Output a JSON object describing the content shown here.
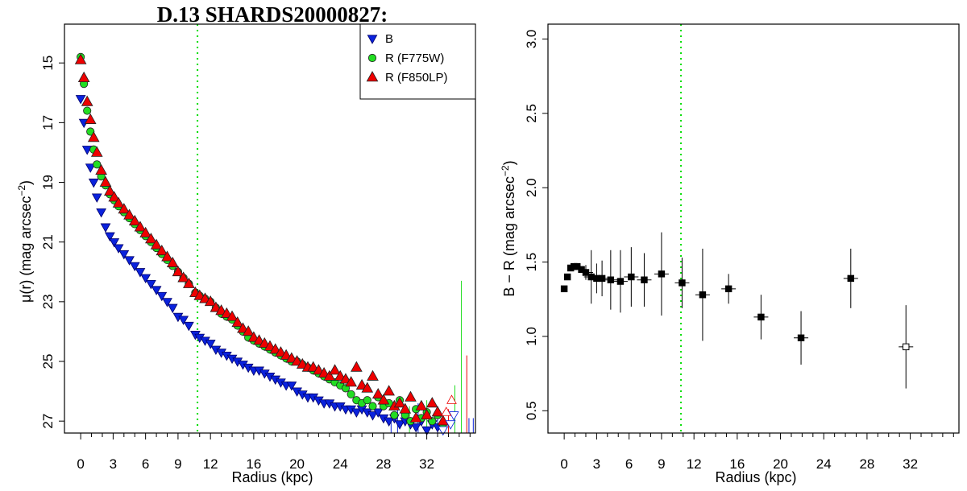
{
  "chart_data": [
    {
      "type": "scatter",
      "title": "D.13 SHARDS20000827:",
      "xlabel": "Radius (kpc)",
      "ylabel": "μ(r) (mag arcsec",
      "ylabel_sup": "−2",
      "ylabel_tail": ")",
      "xlim": [
        -1.5,
        36.5
      ],
      "ylim": [
        27.4,
        13.7
      ],
      "y_reversed": true,
      "xticks": [
        0,
        3,
        6,
        9,
        12,
        16,
        20,
        24,
        28,
        32
      ],
      "xticks_minor": [
        1,
        2,
        4,
        5,
        7,
        8,
        10,
        11,
        13,
        14,
        15,
        17,
        18,
        19,
        21,
        22,
        23,
        25,
        26,
        27,
        29,
        30,
        31,
        33,
        34,
        35,
        36
      ],
      "yticks": [
        15,
        17,
        19,
        21,
        23,
        25,
        27
      ],
      "vline": {
        "x": 10.8,
        "color": "#00dd00",
        "style": "dotted"
      },
      "legend": {
        "position": "top-right",
        "entries": [
          {
            "label": "B",
            "marker": "triangle-down",
            "color": "#0a22dd"
          },
          {
            "label": "R (F775W)",
            "marker": "circle",
            "color": "#22dd22"
          },
          {
            "label": "R (F850LP)",
            "marker": "triangle-up",
            "color": "#ee0000"
          }
        ]
      },
      "series": [
        {
          "name": "B",
          "marker": "triangle-down",
          "color": "#0a22dd",
          "x": [
            0,
            0.3,
            0.6,
            0.9,
            1.2,
            1.5,
            1.9,
            2.3,
            2.7,
            3.1,
            3.5,
            4,
            4.5,
            5,
            5.5,
            6,
            6.5,
            7,
            7.5,
            8,
            8.5,
            9,
            9.5,
            10,
            10.6,
            11,
            11.5,
            12,
            12.5,
            13,
            13.5,
            14,
            14.5,
            15,
            15.5,
            16,
            16.5,
            17,
            17.5,
            18,
            18.5,
            19,
            19.5,
            20,
            20.5,
            21,
            21.5,
            22,
            22.5,
            23,
            23.5,
            24,
            24.5,
            25,
            25.5,
            26,
            26.5,
            27,
            27.5,
            28,
            28.5,
            29,
            29.5,
            30,
            30.5,
            31,
            31.5,
            32,
            32.5,
            33,
            33.5
          ],
          "y": [
            16.2,
            17.0,
            17.9,
            18.5,
            19.0,
            19.5,
            20.0,
            20.5,
            20.8,
            21.0,
            21.2,
            21.4,
            21.6,
            21.8,
            22.0,
            22.2,
            22.4,
            22.6,
            22.8,
            23.0,
            23.2,
            23.5,
            23.6,
            23.8,
            24.1,
            24.2,
            24.3,
            24.4,
            24.6,
            24.7,
            24.8,
            24.9,
            25.0,
            25.1,
            25.2,
            25.3,
            25.3,
            25.4,
            25.5,
            25.6,
            25.7,
            25.8,
            25.8,
            26.0,
            26.1,
            26.2,
            26.2,
            26.3,
            26.4,
            26.4,
            26.5,
            26.5,
            26.6,
            26.6,
            26.7,
            26.6,
            26.7,
            26.8,
            26.7,
            26.9,
            27.0,
            26.9,
            27.1,
            27.0,
            27.1,
            27.2,
            27.0,
            27.3,
            27.1,
            27.2,
            27.3
          ]
        },
        {
          "name": "R (F775W)",
          "marker": "circle",
          "color": "#22dd22",
          "x": [
            0,
            0.3,
            0.6,
            0.9,
            1.2,
            1.5,
            1.9,
            2.3,
            2.7,
            3.1,
            3.5,
            4,
            4.5,
            5,
            5.5,
            6,
            6.5,
            7,
            7.5,
            8,
            8.5,
            9,
            9.5,
            10,
            10.6,
            11,
            11.5,
            12,
            12.5,
            13,
            13.5,
            14,
            14.5,
            15,
            15.5,
            16,
            16.5,
            17,
            17.5,
            18,
            18.5,
            19,
            19.5,
            20,
            20.5,
            21,
            21.5,
            22,
            22.5,
            23,
            23.5,
            24,
            24.5,
            25,
            25.5,
            26,
            26.5,
            27,
            27.5,
            28,
            28.5,
            29,
            29.5,
            30,
            30.5,
            31,
            31.5,
            32,
            32.5,
            33,
            33.5
          ],
          "y": [
            14.8,
            15.7,
            16.6,
            17.3,
            17.9,
            18.4,
            18.8,
            19.1,
            19.4,
            19.6,
            19.8,
            20.0,
            20.2,
            20.4,
            20.6,
            20.8,
            21.0,
            21.2,
            21.4,
            21.6,
            21.8,
            22.0,
            22.2,
            22.4,
            22.7,
            22.8,
            22.9,
            23.0,
            23.2,
            23.4,
            23.5,
            23.6,
            23.8,
            24.0,
            24.2,
            24.3,
            24.4,
            24.5,
            24.6,
            24.7,
            24.8,
            24.9,
            25.0,
            25.0,
            25.1,
            25.2,
            25.3,
            25.4,
            25.5,
            25.6,
            25.7,
            25.8,
            25.9,
            26.1,
            26.3,
            26.4,
            26.3,
            26.5,
            26.2,
            26.5,
            26.4,
            26.8,
            26.3,
            26.8,
            27.0,
            26.6,
            26.9,
            26.7,
            27.0,
            26.8,
            27.1
          ]
        },
        {
          "name": "R (F850LP)",
          "marker": "triangle-up",
          "color": "#ee0000",
          "x": [
            0,
            0.3,
            0.6,
            0.9,
            1.2,
            1.5,
            1.9,
            2.3,
            2.7,
            3.1,
            3.5,
            4,
            4.5,
            5,
            5.5,
            6,
            6.5,
            7,
            7.5,
            8,
            8.5,
            9,
            9.5,
            10,
            10.6,
            11,
            11.5,
            12,
            12.5,
            13,
            13.5,
            14,
            14.5,
            15,
            15.5,
            16,
            16.5,
            17,
            17.5,
            18,
            18.5,
            19,
            19.5,
            20,
            20.5,
            21,
            21.5,
            22,
            22.5,
            23,
            23.5,
            24,
            24.5,
            25,
            25.5,
            26,
            26.5,
            27,
            27.5,
            28,
            28.5,
            29,
            29.5,
            30,
            30.5,
            31,
            31.5,
            32,
            32.5,
            33,
            33.5
          ],
          "y": [
            14.9,
            15.5,
            16.3,
            16.9,
            17.5,
            18.0,
            18.6,
            19.0,
            19.3,
            19.5,
            19.7,
            19.9,
            20.1,
            20.3,
            20.5,
            20.7,
            20.9,
            21.1,
            21.3,
            21.5,
            21.7,
            22.0,
            22.2,
            22.4,
            22.7,
            22.8,
            22.9,
            23.0,
            23.2,
            23.3,
            23.4,
            23.5,
            23.7,
            23.9,
            24.0,
            24.2,
            24.3,
            24.4,
            24.5,
            24.6,
            24.7,
            24.8,
            24.9,
            25.0,
            25.1,
            25.2,
            25.2,
            25.3,
            25.4,
            25.5,
            25.3,
            25.5,
            25.6,
            25.7,
            25.2,
            25.8,
            25.9,
            25.5,
            26.1,
            26.3,
            26.0,
            26.5,
            26.4,
            26.6,
            26.2,
            26.9,
            26.5,
            26.8,
            26.4,
            26.7,
            27.0
          ]
        }
      ],
      "errorbars": [
        {
          "x": 28.7,
          "y_low": 26.8,
          "y_high": 27.4,
          "color": "#0a22dd"
        },
        {
          "x": 29.3,
          "y_low": 26.6,
          "y_high": 27.4,
          "color": "#0a22dd"
        },
        {
          "x": 30.4,
          "y_low": 26.5,
          "y_high": 27.4,
          "color": "#22dd22"
        },
        {
          "x": 31.2,
          "y_low": 26.4,
          "y_high": 27.4,
          "color": "#0a22dd"
        },
        {
          "x": 32.0,
          "y_low": 26.3,
          "y_high": 27.4,
          "color": "#22dd22"
        },
        {
          "x": 33.0,
          "y_low": 26.5,
          "y_high": 27.4,
          "color": "#0a22dd"
        },
        {
          "x": 34.0,
          "y_low": 26.6,
          "y_high": 27.4,
          "color": "#ee0000"
        },
        {
          "x": 34.6,
          "y_low": 25.8,
          "y_high": 27.4,
          "color": "#22dd22"
        },
        {
          "x": 35.2,
          "y_low": 22.3,
          "y_high": 27.4,
          "color": "#22dd22"
        },
        {
          "x": 35.7,
          "y_low": 24.8,
          "y_high": 27.4,
          "color": "#ee0000"
        },
        {
          "x": 35.9,
          "y_low": 26.9,
          "y_high": 27.4,
          "color": "#0a22dd"
        },
        {
          "x": 36.3,
          "y_low": 26.9,
          "y_high": 27.4,
          "color": "#0a22dd"
        }
      ],
      "open_markers": [
        {
          "x": 33.5,
          "y": 27.3,
          "marker": "triangle-down",
          "color": "#0a22dd"
        },
        {
          "x": 34.2,
          "y": 27.1,
          "marker": "triangle-down",
          "color": "#0a22dd"
        },
        {
          "x": 34.5,
          "y": 26.8,
          "marker": "triangle-down",
          "color": "#0a22dd"
        },
        {
          "x": 33.8,
          "y": 26.7,
          "marker": "triangle-up",
          "color": "#ee0000"
        },
        {
          "x": 34.3,
          "y": 26.3,
          "marker": "triangle-up",
          "color": "#ee0000"
        }
      ]
    },
    {
      "type": "scatter",
      "title": "",
      "xlabel": "Radius (kpc)",
      "ylabel": "B − R (mag arcsec",
      "ylabel_sup": "−2",
      "ylabel_tail": ")",
      "xlim": [
        -1.5,
        36.5
      ],
      "ylim": [
        0.35,
        3.1
      ],
      "xticks": [
        0,
        3,
        6,
        9,
        12,
        16,
        20,
        24,
        28,
        32
      ],
      "xticks_minor": [
        1,
        2,
        4,
        5,
        7,
        8,
        10,
        11,
        13,
        14,
        15,
        17,
        18,
        19,
        21,
        22,
        23,
        25,
        26,
        27,
        29,
        30,
        31,
        33,
        34,
        35,
        36
      ],
      "yticks": [
        "0.5",
        "1.0",
        "1.5",
        "2.0",
        "2.5",
        "3.0"
      ],
      "vline": {
        "x": 10.8,
        "color": "#00dd00",
        "style": "dotted"
      },
      "series": [
        {
          "name": "",
          "marker": "square",
          "color": "#000000",
          "points": [
            {
              "x": 0,
              "y": 1.32,
              "err": 0
            },
            {
              "x": 0.3,
              "y": 1.4,
              "err": 0
            },
            {
              "x": 0.6,
              "y": 1.46,
              "err": 0
            },
            {
              "x": 0.9,
              "y": 1.47,
              "err": 0
            },
            {
              "x": 1.2,
              "y": 1.47,
              "err": 0
            },
            {
              "x": 1.6,
              "y": 1.45,
              "err": 0
            },
            {
              "x": 2.0,
              "y": 1.43,
              "err": 0.05
            },
            {
              "x": 2.5,
              "y": 1.4,
              "err": 0.18
            },
            {
              "x": 3.0,
              "y": 1.39,
              "err": 0.1
            },
            {
              "x": 3.5,
              "y": 1.39,
              "err": 0.12
            },
            {
              "x": 4.3,
              "y": 1.38,
              "err": 0.2
            },
            {
              "x": 5.2,
              "y": 1.37,
              "err": 0.21
            },
            {
              "x": 6.2,
              "y": 1.4,
              "err": 0.2
            },
            {
              "x": 7.4,
              "y": 1.38,
              "err": 0.18
            },
            {
              "x": 9.0,
              "y": 1.42,
              "err": 0.28
            },
            {
              "x": 10.9,
              "y": 1.36,
              "err": 0.17
            },
            {
              "x": 12.8,
              "y": 1.28,
              "err": 0.31
            },
            {
              "x": 15.2,
              "y": 1.32,
              "err": 0.1
            },
            {
              "x": 18.2,
              "y": 1.13,
              "err": 0.15
            },
            {
              "x": 21.9,
              "y": 0.99,
              "err": 0.18
            },
            {
              "x": 26.5,
              "y": 1.39,
              "err": 0.2
            },
            {
              "x": 31.6,
              "y": 0.93,
              "err": 0.28,
              "open": true
            }
          ]
        }
      ]
    }
  ]
}
